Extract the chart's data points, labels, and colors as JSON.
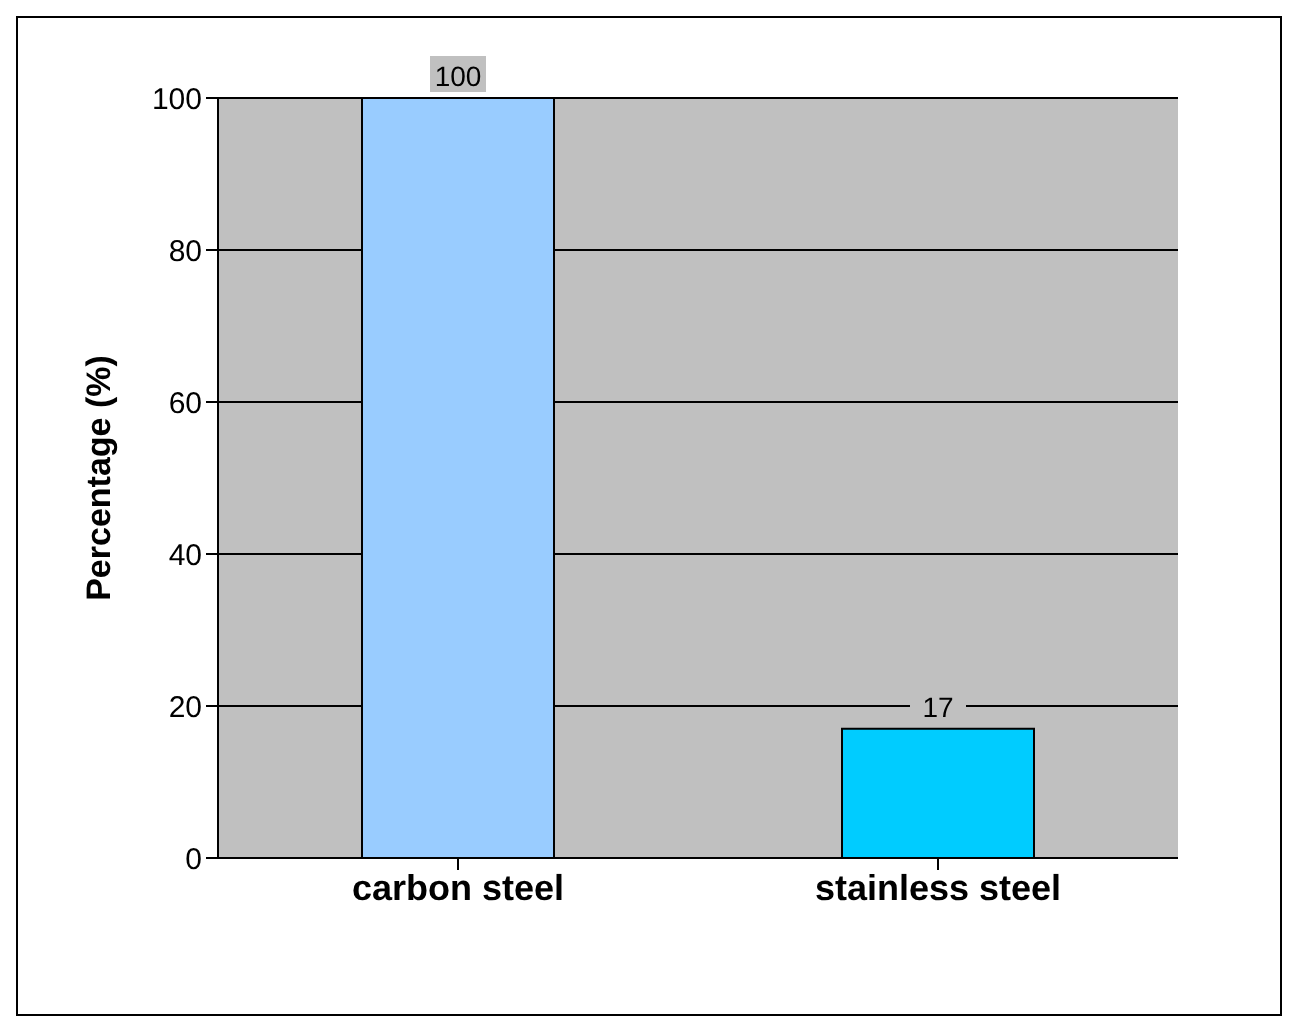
{
  "chart_data": {
    "type": "bar",
    "ylabel": "Percentage (%)",
    "categories": [
      "carbon steel",
      "stainless steel"
    ],
    "values": [
      100,
      17
    ],
    "colors": [
      "#99ccff",
      "#00ccff"
    ],
    "ylim": [
      0,
      100
    ],
    "yticks": [
      0,
      20,
      40,
      60,
      80,
      100
    ],
    "grid": "y",
    "data_labels": true
  }
}
